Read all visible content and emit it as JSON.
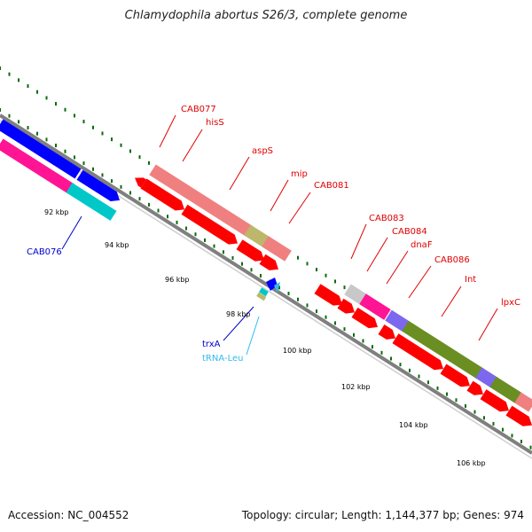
{
  "title": "Chlamydophila abortus S26/3, complete genome",
  "footer": {
    "accession": "Accession: NC_004552",
    "summary": "Topology: circular; Length: 1,144,377 bp; Genes: 974"
  },
  "scale_labels": [
    "92 kbp",
    "94 kbp",
    "96 kbp",
    "98 kbp",
    "100 kbp",
    "102 kbp",
    "104 kbp",
    "106 kbp"
  ],
  "gene_labels": {
    "cab077": "CAB077",
    "hisS": "hisS",
    "aspS": "aspS",
    "mip": "mip",
    "cab081": "CAB081",
    "cab083": "CAB083",
    "cab084": "CAB084",
    "dnaF": "dnaF",
    "cab086": "CAB086",
    "int": "Int",
    "lpxC": "lpxC",
    "cab076": "CAB076",
    "trxA": "trxA",
    "trna_leu": "tRNA-Leu"
  },
  "colors": {
    "red": "#ff0000",
    "dark_red": "#c00000",
    "blue": "#0000ff",
    "dark_blue": "#00008b",
    "cyan": "#00c8c8",
    "light_blue": "#33bbee",
    "pink": "#f08080",
    "magenta": "#ff1493",
    "olive": "#6b8e23",
    "khaki": "#bdb76b",
    "purple": "#7b68ee",
    "grey": "#c8c8c8",
    "backbone": "#7f7f7f",
    "tick": "#0b6b0b"
  }
}
